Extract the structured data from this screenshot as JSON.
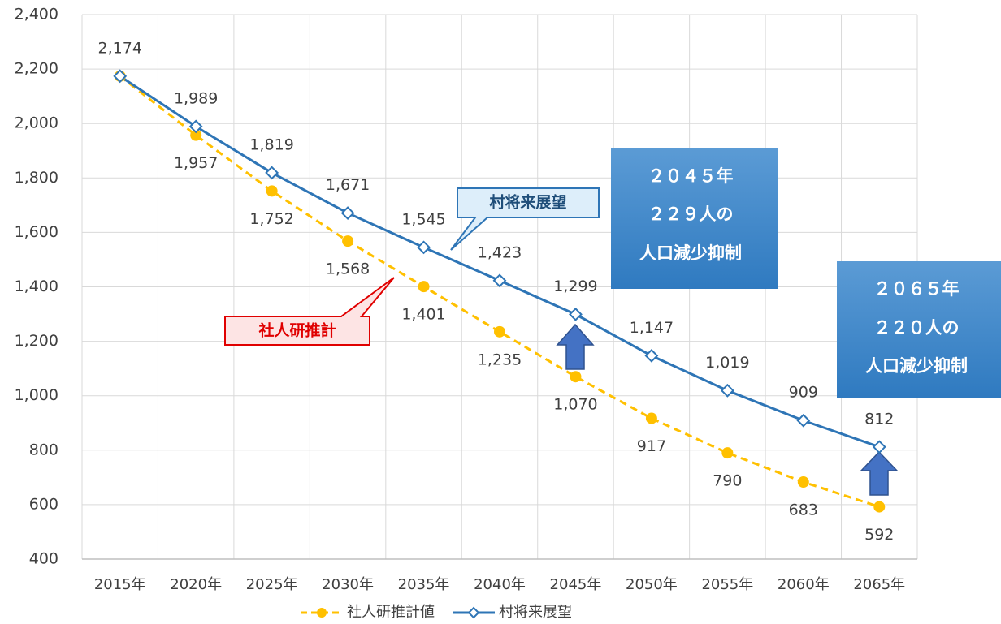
{
  "chart_data": {
    "type": "line",
    "categories": [
      "2015年",
      "2020年",
      "2025年",
      "2030年",
      "2035年",
      "2040年",
      "2045年",
      "2050年",
      "2055年",
      "2060年",
      "2065年"
    ],
    "series": [
      {
        "name": "社人研推計値",
        "color": "#ffc000",
        "dashed": true,
        "marker": "circle",
        "values": [
          2174,
          1957,
          1752,
          1568,
          1401,
          1235,
          1070,
          917,
          790,
          683,
          592
        ],
        "value_labels": [
          null,
          "1,957",
          "1,752",
          "1,568",
          "1,401",
          "1,235",
          "1,070",
          "917",
          "790",
          "683",
          "592"
        ]
      },
      {
        "name": "村将来展望",
        "color": "#2e75b6",
        "dashed": false,
        "marker": "diamond",
        "values": [
          2174,
          1989,
          1819,
          1671,
          1545,
          1423,
          1299,
          1147,
          1019,
          909,
          812
        ],
        "value_labels": [
          "2,174",
          "1,989",
          "1,819",
          "1,671",
          "1,545",
          "1,423",
          "1,299",
          "1,147",
          "1,019",
          "909",
          "812"
        ]
      }
    ],
    "ylim": [
      400,
      2400
    ],
    "yticks": [
      400,
      600,
      800,
      {
        "value": 1000,
        "label": "1,000"
      },
      {
        "value": 1200,
        "label": "1,200"
      },
      {
        "value": 1400,
        "label": "1,400"
      },
      {
        "value": 1600,
        "label": "1,600"
      },
      {
        "value": 1800,
        "label": "1,800"
      },
      {
        "value": 2000,
        "label": "2,000"
      },
      {
        "value": 2200,
        "label": "2,200"
      },
      {
        "value": 2400,
        "label": "2,400"
      }
    ],
    "grid": true,
    "legend": "bottom",
    "annotations": {
      "callout_blue": "村将来展望",
      "callout_red": "社人研推計",
      "box_2045": [
        "２０４５年",
        "２２９人の",
        "人口減少抑制"
      ],
      "box_2065": [
        "２０６５年",
        "２２０人の",
        "人口減少抑制"
      ]
    }
  }
}
